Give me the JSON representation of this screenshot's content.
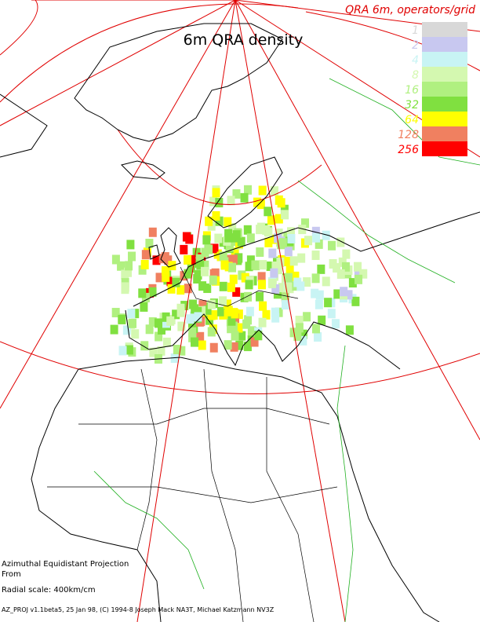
{
  "map": {
    "title": "6m QRA density",
    "legend": {
      "title": "QRA 6m, operators/grid",
      "items": [
        {
          "label": "1",
          "color": "#d8d8d8"
        },
        {
          "label": "2",
          "color": "#c8c8f0"
        },
        {
          "label": "4",
          "color": "#c8f4f4"
        },
        {
          "label": "8",
          "color": "#d4f8b0"
        },
        {
          "label": "16",
          "color": "#b0f080"
        },
        {
          "label": "32",
          "color": "#80e040"
        },
        {
          "label": "64",
          "color": "#ffff00"
        },
        {
          "label": "128",
          "color": "#f08060"
        },
        {
          "label": "256",
          "color": "#ff0000"
        }
      ]
    },
    "footer": {
      "projection": "Azimuthal Equidistant Projection",
      "from": "From",
      "scale": "Radial scale: 400km/cm",
      "credits": "AZ_PROJ v1.1beta5, 25 Jan 98, (C) 1994-8 Joseph Mack NA3T, Michael Katzmann NV3Z"
    }
  }
}
